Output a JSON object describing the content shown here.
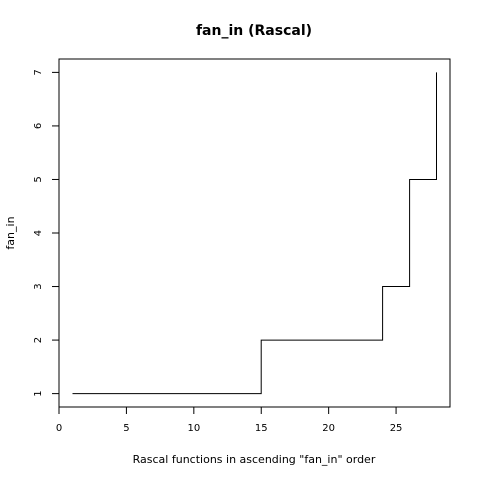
{
  "chart_data": {
    "type": "line",
    "step": true,
    "title": "fan_in (Rascal)",
    "xlabel": "Rascal functions in ascending \"fan_in\" order",
    "ylabel": "fan_in",
    "xlim": [
      0,
      29
    ],
    "ylim": [
      0.75,
      7.25
    ],
    "xticks": [
      0,
      5,
      10,
      15,
      20,
      25
    ],
    "yticks": [
      1,
      2,
      3,
      4,
      5,
      6,
      7
    ],
    "series": [
      {
        "x": [
          1,
          15,
          15,
          24,
          24,
          26,
          26,
          28,
          28
        ],
        "y": [
          1,
          1,
          2,
          2,
          3,
          3,
          5,
          5,
          7
        ]
      }
    ]
  }
}
